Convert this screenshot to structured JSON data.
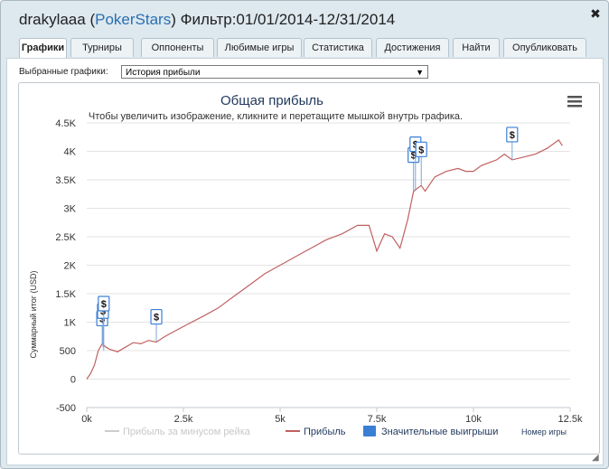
{
  "window": {
    "title_user": "drakylaaa",
    "title_site": "PokerStars",
    "title_filter": "Фильтр:01/01/2014-12/31/2014",
    "close_label": "✖"
  },
  "tabs": [
    {
      "label": "Графики",
      "active": true
    },
    {
      "label": "Турниры",
      "active": false
    },
    {
      "label": "Оппоненты",
      "active": false
    },
    {
      "label": "Любимые игры",
      "active": false
    },
    {
      "label": "Статистика",
      "active": false
    },
    {
      "label": "Достижения",
      "active": false
    },
    {
      "label": "Найти",
      "active": false
    },
    {
      "label": "Опубликовать",
      "active": false
    }
  ],
  "graph_selector": {
    "label": "Выбранные графики:",
    "value": "История прибыли",
    "arrow": "▼"
  },
  "menu_icon": "hamburger-menu-icon",
  "chart_data": {
    "type": "line",
    "title": "Общая прибыль",
    "subtitle": "Чтобы увеличить изображение, кликните и перетащите мышкой внутрь графика.",
    "xlabel": "Номер игры",
    "ylabel": "Суммарный итог (USD)",
    "xlim": [
      0,
      12500
    ],
    "ylim": [
      -500,
      4500
    ],
    "x_ticks": [
      "0k",
      "2.5k",
      "5k",
      "7.5k",
      "10k",
      "12.5k"
    ],
    "y_ticks": [
      "-500",
      "0",
      "500",
      "1K",
      "1.5K",
      "2K",
      "2.5K",
      "3K",
      "3.5K",
      "4K",
      "4.5K"
    ],
    "grid": true,
    "legend_position": "bottom",
    "legend": [
      {
        "name": "Прибыль за минусом рейка",
        "color": "#cccccc",
        "marker": "line",
        "disabled": true
      },
      {
        "name": "Прибыль",
        "color": "#c06060",
        "marker": "line",
        "disabled": false
      },
      {
        "name": "Значительные выигрыши",
        "color": "#3a7fd5",
        "marker": "square",
        "disabled": false
      }
    ],
    "series": [
      {
        "name": "Прибыль",
        "color": "#c06060",
        "x": [
          0,
          100,
          200,
          300,
          400,
          500,
          600,
          700,
          800,
          1000,
          1200,
          1400,
          1600,
          1800,
          2000,
          2300,
          2600,
          3000,
          3400,
          3800,
          4200,
          4600,
          5000,
          5400,
          5800,
          6200,
          6600,
          7000,
          7300,
          7500,
          7700,
          7900,
          8100,
          8300,
          8450,
          8550,
          8650,
          8750,
          9000,
          9300,
          9600,
          9800,
          10000,
          10200,
          10400,
          10600,
          10800,
          11000,
          11300,
          11600,
          11900,
          12100,
          12200,
          12300
        ],
        "y": [
          0,
          100,
          250,
          500,
          620,
          560,
          520,
          500,
          480,
          560,
          640,
          620,
          680,
          650,
          740,
          850,
          960,
          1100,
          1250,
          1450,
          1650,
          1850,
          2000,
          2150,
          2300,
          2450,
          2550,
          2700,
          2700,
          2250,
          2550,
          2500,
          2300,
          2800,
          3300,
          3350,
          3400,
          3300,
          3550,
          3650,
          3700,
          3650,
          3650,
          3750,
          3800,
          3850,
          3950,
          3850,
          3900,
          3950,
          4050,
          4150,
          4200,
          4100
        ]
      }
    ],
    "big_wins": [
      {
        "x": 400,
        "y": 620,
        "label": "$"
      },
      {
        "x": 420,
        "y": 560,
        "label": "$"
      },
      {
        "x": 440,
        "y": 500,
        "label": "$"
      },
      {
        "x": 1800,
        "y": 650,
        "label": "$"
      },
      {
        "x": 8450,
        "y": 3300,
        "label": "$"
      },
      {
        "x": 8500,
        "y": 3300,
        "label": "$"
      },
      {
        "x": 8650,
        "y": 3400,
        "label": "$"
      },
      {
        "x": 11000,
        "y": 3850,
        "label": "$"
      }
    ]
  }
}
